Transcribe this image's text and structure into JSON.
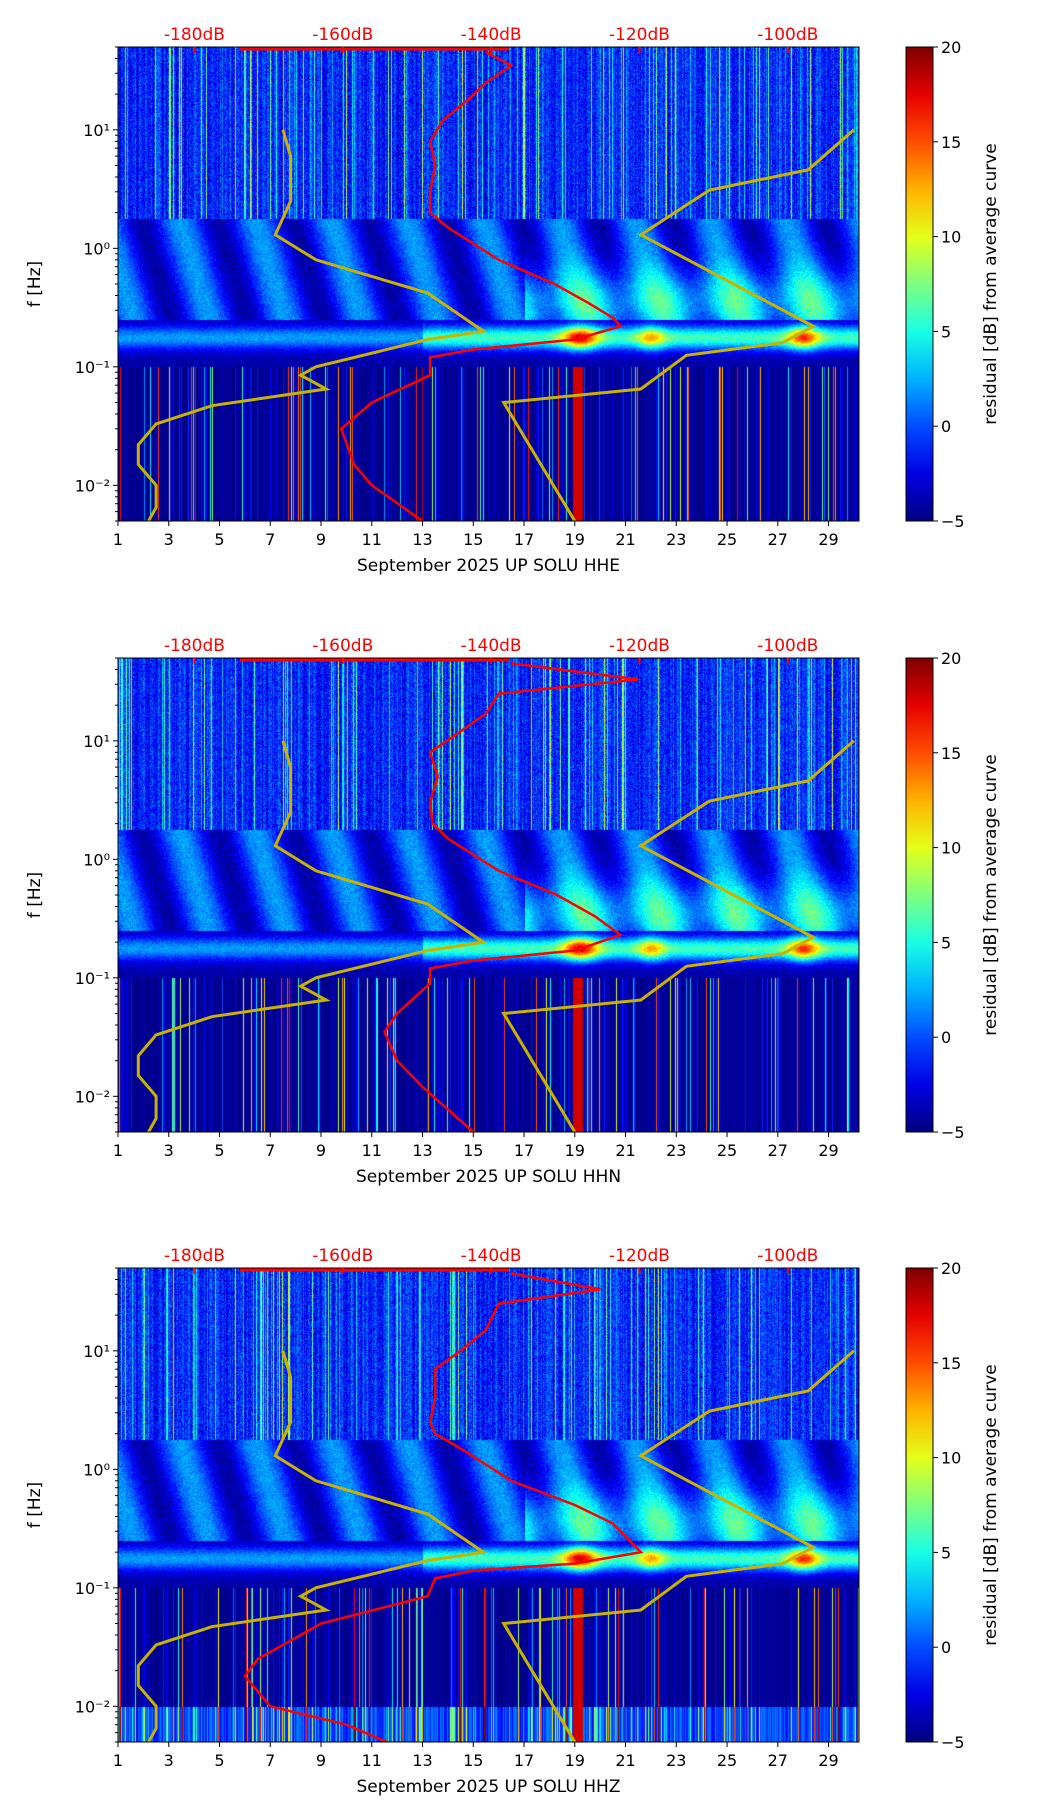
{
  "chart_data": [
    {
      "type": "heatmap",
      "xlabel": "September 2025 UP SOLU  HHE",
      "ylabel": "f [Hz]",
      "colorbar_label": "residual [dB] from average curve",
      "xlim": [
        1,
        30.2
      ],
      "ylim": [
        0.005,
        50
      ],
      "yscale": "log",
      "clim": [
        -5,
        20
      ],
      "colormap": "jet",
      "xticks": [
        "1",
        "3",
        "5",
        "7",
        "9",
        "11",
        "13",
        "15",
        "17",
        "19",
        "21",
        "23",
        "25",
        "27",
        "29"
      ],
      "yticks": [
        {
          "value": 0.01,
          "label": "10⁻²"
        },
        {
          "value": 0.1,
          "label": "10⁻¹"
        },
        {
          "value": 1,
          "label": "10⁰"
        },
        {
          "value": 10,
          "label": "10¹"
        }
      ],
      "cticks": [
        "-5",
        "0",
        "5",
        "10",
        "15",
        "20"
      ],
      "top_axis": {
        "label_color": "#ff0000",
        "range_db": [
          -190.3,
          -90.4
        ],
        "ticks": [
          "-180dB",
          "-160dB",
          "-140dB",
          "-120dB",
          "-100dB"
        ]
      },
      "red_curve": {
        "name": "average curve",
        "color": "#ff0000",
        "points": [
          [
            15.5,
            45
          ],
          [
            16.5,
            35
          ],
          [
            15.5,
            25
          ],
          [
            14.8,
            18
          ],
          [
            13.8,
            12
          ],
          [
            13.3,
            8
          ],
          [
            13.5,
            5
          ],
          [
            13.3,
            3
          ],
          [
            13.3,
            2
          ],
          [
            14,
            1.5
          ],
          [
            16,
            0.8
          ],
          [
            18.2,
            0.5
          ],
          [
            19.5,
            0.35
          ],
          [
            20.5,
            0.26
          ],
          [
            20.8,
            0.22
          ],
          [
            19,
            0.17
          ],
          [
            15,
            0.14
          ],
          [
            13.3,
            0.12
          ],
          [
            13.3,
            0.085
          ],
          [
            11,
            0.05
          ],
          [
            9.8,
            0.03
          ],
          [
            10.3,
            0.015
          ],
          [
            11,
            0.01
          ],
          [
            13,
            0.005
          ]
        ]
      },
      "yellow_curves": {
        "color": "#c8b400",
        "low": [
          [
            7.5,
            10
          ],
          [
            7.8,
            6
          ],
          [
            7.8,
            2.5
          ],
          [
            7.2,
            1.3
          ],
          [
            8.8,
            0.8
          ],
          [
            13.2,
            0.42
          ],
          [
            15.4,
            0.2
          ],
          [
            13.2,
            0.17
          ],
          [
            8.8,
            0.1
          ],
          [
            8.2,
            0.085
          ],
          [
            9.2,
            0.065
          ],
          [
            4.7,
            0.047
          ],
          [
            2.5,
            0.033
          ],
          [
            1.8,
            0.022
          ],
          [
            1.8,
            0.015
          ],
          [
            2.5,
            0.01
          ],
          [
            2.5,
            0.0065
          ],
          [
            2.2,
            0.005
          ]
        ],
        "high": [
          [
            19,
            0.005
          ],
          [
            16.2,
            0.05
          ],
          [
            21.6,
            0.065
          ],
          [
            23.4,
            0.125
          ],
          [
            27.2,
            0.16
          ],
          [
            28.4,
            0.22
          ],
          [
            21.6,
            1.3
          ],
          [
            24.3,
            3.1
          ],
          [
            28.2,
            4.6
          ],
          [
            30,
            10
          ]
        ]
      }
    },
    {
      "type": "heatmap",
      "xlabel": "September 2025 UP SOLU  HHN",
      "ylabel": "f [Hz]",
      "colorbar_label": "residual [dB] from average curve",
      "xlim": [
        1,
        30.2
      ],
      "ylim": [
        0.005,
        50
      ],
      "yscale": "log",
      "clim": [
        -5,
        20
      ],
      "colormap": "jet",
      "xticks": [
        "1",
        "3",
        "5",
        "7",
        "9",
        "11",
        "13",
        "15",
        "17",
        "19",
        "21",
        "23",
        "25",
        "27",
        "29"
      ],
      "yticks": [
        {
          "value": 0.01,
          "label": "10⁻²"
        },
        {
          "value": 0.1,
          "label": "10⁻¹"
        },
        {
          "value": 1,
          "label": "10⁰"
        },
        {
          "value": 10,
          "label": "10¹"
        }
      ],
      "cticks": [
        "-5",
        "0",
        "5",
        "10",
        "15",
        "20"
      ],
      "top_axis": {
        "label_color": "#ff0000",
        "range_db": [
          -190.3,
          -90.4
        ],
        "ticks": [
          "-180dB",
          "-160dB",
          "-140dB",
          "-120dB",
          "-100dB"
        ]
      },
      "red_curve": {
        "name": "average curve",
        "color": "#ff0000",
        "points": [
          [
            16.5,
            45
          ],
          [
            21.5,
            33
          ],
          [
            16,
            25
          ],
          [
            15.5,
            17
          ],
          [
            14.5,
            12
          ],
          [
            13.3,
            8
          ],
          [
            13.6,
            5
          ],
          [
            13.3,
            3
          ],
          [
            13.4,
            2
          ],
          [
            14,
            1.5
          ],
          [
            16,
            0.8
          ],
          [
            18.3,
            0.5
          ],
          [
            19.8,
            0.33
          ],
          [
            20.8,
            0.23
          ],
          [
            19,
            0.17
          ],
          [
            15,
            0.14
          ],
          [
            13.3,
            0.12
          ],
          [
            13.3,
            0.09
          ],
          [
            12,
            0.05
          ],
          [
            11.5,
            0.035
          ],
          [
            12,
            0.02
          ],
          [
            13,
            0.012
          ],
          [
            15,
            0.005
          ]
        ]
      },
      "yellow_curves": {
        "color": "#c8b400",
        "low": [
          [
            7.5,
            10
          ],
          [
            7.8,
            6
          ],
          [
            7.8,
            2.5
          ],
          [
            7.2,
            1.3
          ],
          [
            8.8,
            0.8
          ],
          [
            13.2,
            0.42
          ],
          [
            15.4,
            0.2
          ],
          [
            13.2,
            0.17
          ],
          [
            8.8,
            0.1
          ],
          [
            8.2,
            0.085
          ],
          [
            9.2,
            0.065
          ],
          [
            4.7,
            0.047
          ],
          [
            2.5,
            0.033
          ],
          [
            1.8,
            0.022
          ],
          [
            1.8,
            0.015
          ],
          [
            2.5,
            0.01
          ],
          [
            2.5,
            0.0065
          ],
          [
            2.2,
            0.005
          ]
        ],
        "high": [
          [
            19,
            0.005
          ],
          [
            16.2,
            0.05
          ],
          [
            21.6,
            0.065
          ],
          [
            23.4,
            0.125
          ],
          [
            27.2,
            0.16
          ],
          [
            28.4,
            0.22
          ],
          [
            21.6,
            1.3
          ],
          [
            24.3,
            3.1
          ],
          [
            28.2,
            4.6
          ],
          [
            30,
            10
          ]
        ]
      }
    },
    {
      "type": "heatmap",
      "xlabel": "September 2025 UP SOLU  HHZ",
      "ylabel": "f [Hz]",
      "colorbar_label": "residual [dB] from average curve",
      "xlim": [
        1,
        30.2
      ],
      "ylim": [
        0.005,
        50
      ],
      "yscale": "log",
      "clim": [
        -5,
        20
      ],
      "colormap": "jet",
      "xticks": [
        "1",
        "3",
        "5",
        "7",
        "9",
        "11",
        "13",
        "15",
        "17",
        "19",
        "21",
        "23",
        "25",
        "27",
        "29"
      ],
      "yticks": [
        {
          "value": 0.01,
          "label": "10⁻²"
        },
        {
          "value": 0.1,
          "label": "10⁻¹"
        },
        {
          "value": 1,
          "label": "10⁰"
        },
        {
          "value": 10,
          "label": "10¹"
        }
      ],
      "cticks": [
        "-5",
        "0",
        "5",
        "10",
        "15",
        "20"
      ],
      "top_axis": {
        "label_color": "#ff0000",
        "range_db": [
          -190.3,
          -90.4
        ],
        "ticks": [
          "-180dB",
          "-160dB",
          "-140dB",
          "-120dB",
          "-100dB"
        ]
      },
      "red_curve": {
        "name": "average curve",
        "color": "#ff0000",
        "points": [
          [
            16.5,
            45
          ],
          [
            20,
            33
          ],
          [
            16,
            25
          ],
          [
            15.5,
            15
          ],
          [
            14.5,
            10
          ],
          [
            13.5,
            7
          ],
          [
            13.5,
            4
          ],
          [
            13.3,
            2.5
          ],
          [
            13.5,
            2
          ],
          [
            14.5,
            1.5
          ],
          [
            16.5,
            0.8
          ],
          [
            19,
            0.5
          ],
          [
            20.5,
            0.35
          ],
          [
            21.6,
            0.2
          ],
          [
            19,
            0.16
          ],
          [
            15,
            0.14
          ],
          [
            13.5,
            0.12
          ],
          [
            13.2,
            0.085
          ],
          [
            9,
            0.05
          ],
          [
            6.5,
            0.025
          ],
          [
            6,
            0.018
          ],
          [
            7,
            0.01
          ],
          [
            10,
            0.007
          ],
          [
            11.6,
            0.005
          ]
        ]
      },
      "yellow_curves": {
        "color": "#c8b400",
        "low": [
          [
            7.5,
            10
          ],
          [
            7.8,
            6
          ],
          [
            7.8,
            2.5
          ],
          [
            7.2,
            1.3
          ],
          [
            8.8,
            0.8
          ],
          [
            13.2,
            0.42
          ],
          [
            15.4,
            0.2
          ],
          [
            13.2,
            0.17
          ],
          [
            8.8,
            0.1
          ],
          [
            8.2,
            0.085
          ],
          [
            9.2,
            0.065
          ],
          [
            4.7,
            0.047
          ],
          [
            2.5,
            0.033
          ],
          [
            1.8,
            0.022
          ],
          [
            1.8,
            0.015
          ],
          [
            2.5,
            0.01
          ],
          [
            2.5,
            0.0065
          ],
          [
            2.2,
            0.005
          ]
        ],
        "high": [
          [
            19,
            0.005
          ],
          [
            16.2,
            0.05
          ],
          [
            21.6,
            0.065
          ],
          [
            23.4,
            0.125
          ],
          [
            27.2,
            0.16
          ],
          [
            28.4,
            0.22
          ],
          [
            21.6,
            1.3
          ],
          [
            24.3,
            3.1
          ],
          [
            28.2,
            4.6
          ],
          [
            30,
            10
          ]
        ]
      }
    }
  ]
}
